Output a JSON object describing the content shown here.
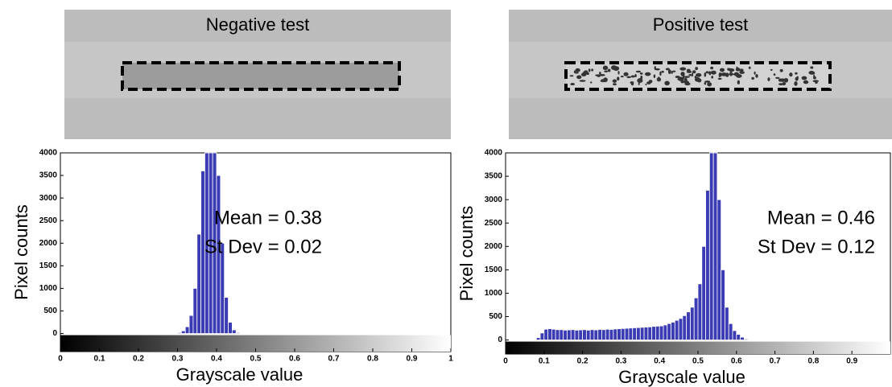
{
  "chart_data": [
    {
      "type": "histogram",
      "title": "Negative test",
      "xlabel": "Grayscale value",
      "ylabel": "Pixel counts",
      "annotations": [
        "Mean = 0.38",
        "St Dev = 0.02"
      ],
      "color": "#3b3bb3",
      "bins": [
        0.3,
        0.31,
        0.32,
        0.33,
        0.34,
        0.35,
        0.36,
        0.37,
        0.38,
        0.39,
        0.4,
        0.41,
        0.42,
        0.43,
        0.44,
        0.45,
        0.46
      ],
      "values": [
        20,
        60,
        150,
        400,
        1000,
        2200,
        3600,
        4000,
        4000,
        4000,
        3500,
        2000,
        800,
        250,
        80,
        20
      ],
      "xlim": [
        0,
        1
      ],
      "xticks": [
        0,
        0.1,
        0.2,
        0.3,
        0.4,
        0.5,
        0.6,
        0.7,
        0.8,
        0.9,
        1
      ],
      "ylim": [
        -400,
        4000
      ],
      "yticks": [
        0,
        500,
        1000,
        1500,
        2000,
        2500,
        3000,
        3500,
        4000
      ]
    },
    {
      "type": "histogram",
      "title": "Positive test",
      "xlabel": "Grayscale value",
      "ylabel": "Pixel counts",
      "annotations": [
        "Mean = 0.46",
        "St Dev = 0.12"
      ],
      "color": "#3b3bb3",
      "bins": [
        0.08,
        0.09,
        0.1,
        0.11,
        0.12,
        0.13,
        0.14,
        0.15,
        0.16,
        0.17,
        0.18,
        0.19,
        0.2,
        0.21,
        0.22,
        0.23,
        0.24,
        0.25,
        0.26,
        0.27,
        0.28,
        0.29,
        0.3,
        0.31,
        0.32,
        0.33,
        0.34,
        0.35,
        0.36,
        0.37,
        0.38,
        0.39,
        0.4,
        0.41,
        0.42,
        0.43,
        0.44,
        0.45,
        0.46,
        0.47,
        0.48,
        0.49,
        0.5,
        0.51,
        0.52,
        0.53,
        0.54,
        0.55,
        0.56,
        0.57,
        0.58,
        0.59,
        0.6,
        0.61,
        0.62,
        0.63
      ],
      "values": [
        50,
        150,
        230,
        240,
        230,
        220,
        220,
        210,
        215,
        220,
        210,
        215,
        220,
        210,
        220,
        215,
        225,
        220,
        230,
        225,
        235,
        240,
        245,
        250,
        255,
        260,
        265,
        270,
        275,
        280,
        290,
        295,
        300,
        320,
        350,
        380,
        420,
        460,
        520,
        600,
        700,
        900,
        1200,
        2000,
        3200,
        4000,
        4000,
        3000,
        1500,
        700,
        350,
        200,
        120,
        60,
        20
      ],
      "xlim": [
        0,
        1
      ],
      "xticks": [
        0,
        0.1,
        0.2,
        0.3,
        0.4,
        0.5,
        0.6,
        0.7,
        0.8,
        0.9
      ],
      "ylim": [
        -300,
        4000
      ],
      "yticks": [
        0,
        500,
        1000,
        1500,
        2000,
        2500,
        3000,
        3500,
        4000
      ]
    }
  ]
}
